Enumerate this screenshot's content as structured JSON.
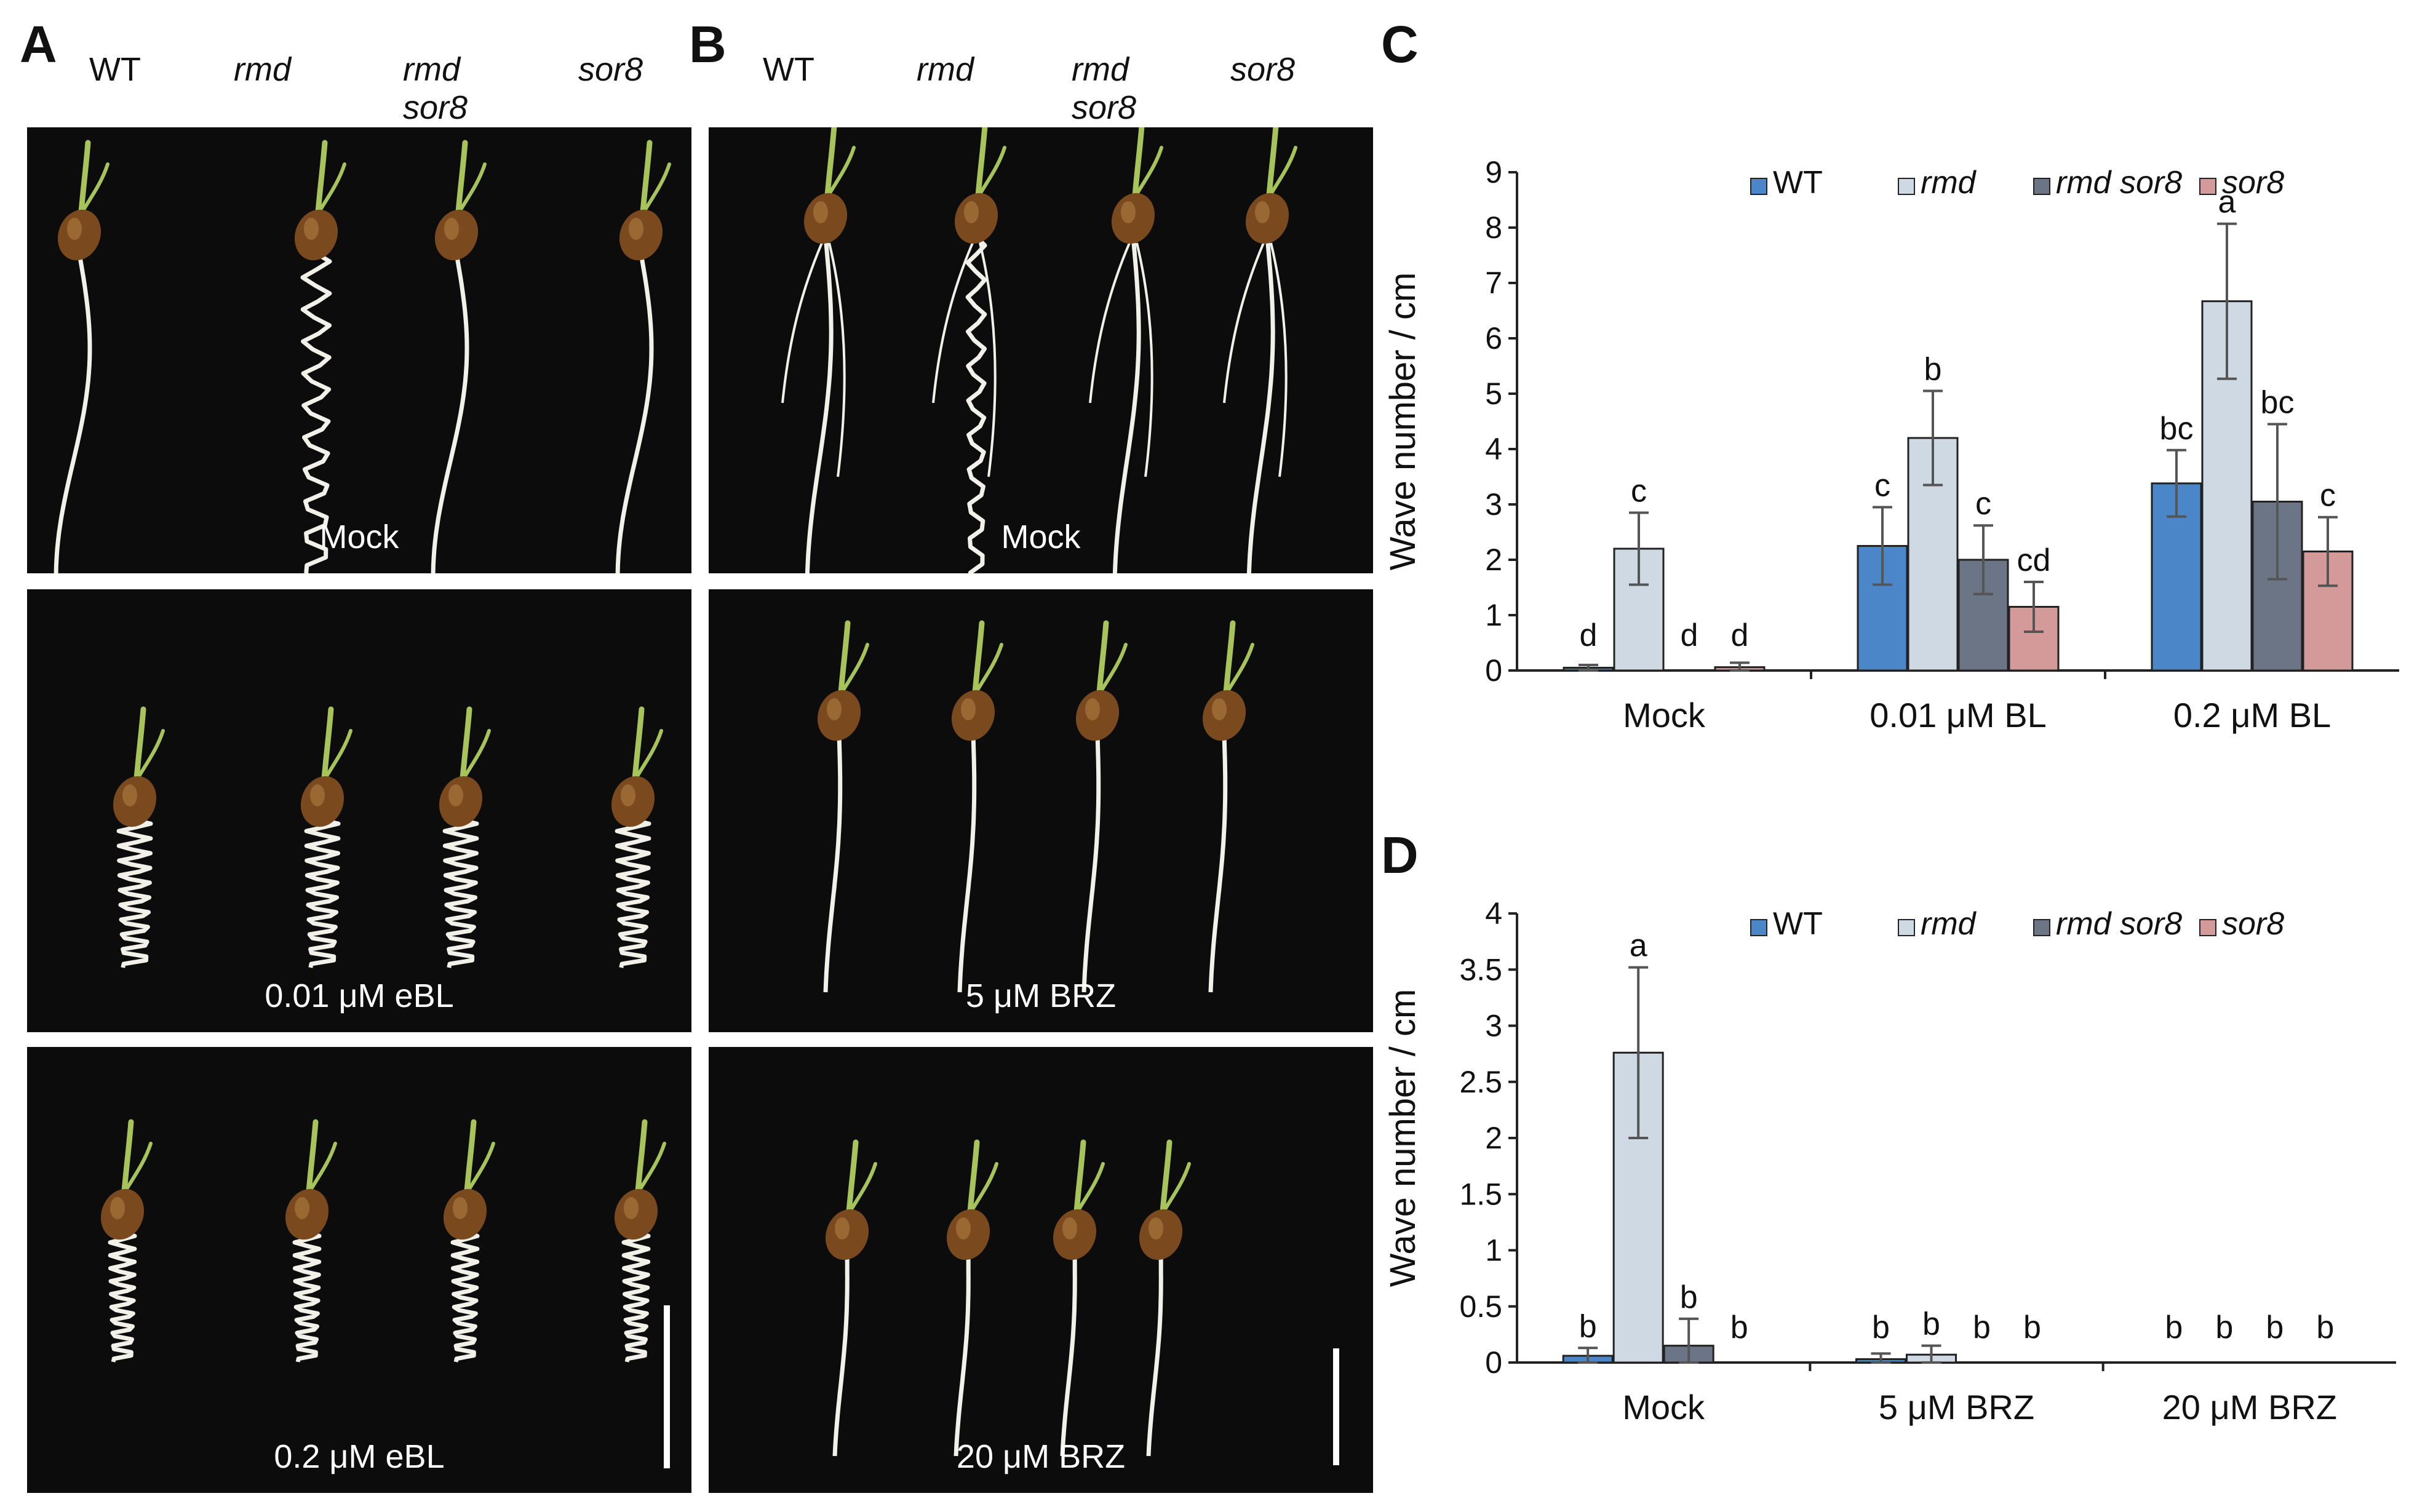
{
  "panel_labels": {
    "a": "A",
    "b": "B",
    "c": "C",
    "d": "D"
  },
  "genotypes": {
    "wt": "WT",
    "rmd": "rmd",
    "rmd_sor8_line1": "rmd",
    "rmd_sor8_line2": "sor8",
    "sor8": "sor8"
  },
  "panel_a": {
    "treatments": [
      "Mock",
      "0.01 μM eBL",
      "0.2 μM eBL"
    ]
  },
  "panel_b": {
    "treatments": [
      "Mock",
      "5 μM BRZ",
      "20 μM BRZ"
    ]
  },
  "colors": {
    "WT": "#4a86c8",
    "rmd": "#cfd9e3",
    "rmd sor8": "#6b7585",
    "sor8": "#d49a9a",
    "error_bar": "#555555",
    "photo_background": "#0c0c0d",
    "root": "#f1f1ea",
    "seed": "#7a4a1e",
    "shoot": "#a7c45a"
  },
  "chart_data": [
    {
      "type": "bar",
      "panel": "C",
      "ylabel": "Wave number / cm",
      "ylim": [
        0,
        9
      ],
      "yticks": [
        "0",
        "1",
        "2",
        "3",
        "4",
        "5",
        "6",
        "7",
        "8",
        "9"
      ],
      "categories": [
        "Mock",
        "0.01 μM BL",
        "0.2 μM BL"
      ],
      "legend_position": "top",
      "series": [
        {
          "name": "WT",
          "values": [
            0.05,
            2.25,
            3.38
          ],
          "errors": [
            0.05,
            0.7,
            0.6
          ],
          "letters": [
            "d",
            "c",
            "bc"
          ]
        },
        {
          "name": "rmd",
          "values": [
            2.2,
            4.2,
            6.67
          ],
          "errors": [
            0.65,
            0.85,
            1.4
          ],
          "letters": [
            "c",
            "b",
            "a"
          ]
        },
        {
          "name": "rmd sor8",
          "values": [
            0,
            2.0,
            3.05
          ],
          "errors": [
            0,
            0.62,
            1.4
          ],
          "letters": [
            "d",
            "c",
            "bc"
          ]
        },
        {
          "name": "sor8",
          "values": [
            0.06,
            1.15,
            2.15
          ],
          "errors": [
            0.08,
            0.45,
            0.62
          ],
          "letters": [
            "d",
            "cd",
            "c"
          ]
        }
      ]
    },
    {
      "type": "bar",
      "panel": "D",
      "ylabel": "Wave number / cm",
      "ylim": [
        0,
        4
      ],
      "yticks": [
        "0",
        "0.5",
        "1",
        "1.5",
        "2",
        "2.5",
        "3",
        "3.5",
        "4"
      ],
      "categories": [
        "Mock",
        "5 μM BRZ",
        "20 μM BRZ"
      ],
      "legend_position": "top",
      "series": [
        {
          "name": "WT",
          "values": [
            0.06,
            0.03,
            0
          ],
          "errors": [
            0.07,
            0.05,
            0
          ],
          "letters": [
            "b",
            "b",
            "b"
          ]
        },
        {
          "name": "rmd",
          "values": [
            2.76,
            0.07,
            0
          ],
          "errors": [
            0.76,
            0.08,
            0
          ],
          "letters": [
            "a",
            "b",
            "b"
          ]
        },
        {
          "name": "rmd sor8",
          "values": [
            0.15,
            0,
            0
          ],
          "errors": [
            0.24,
            0,
            0
          ],
          "letters": [
            "b",
            "b",
            "b"
          ]
        },
        {
          "name": "sor8",
          "values": [
            0,
            0,
            0
          ],
          "errors": [
            0,
            0,
            0
          ],
          "letters": [
            "b",
            "b",
            "b"
          ]
        }
      ]
    }
  ]
}
